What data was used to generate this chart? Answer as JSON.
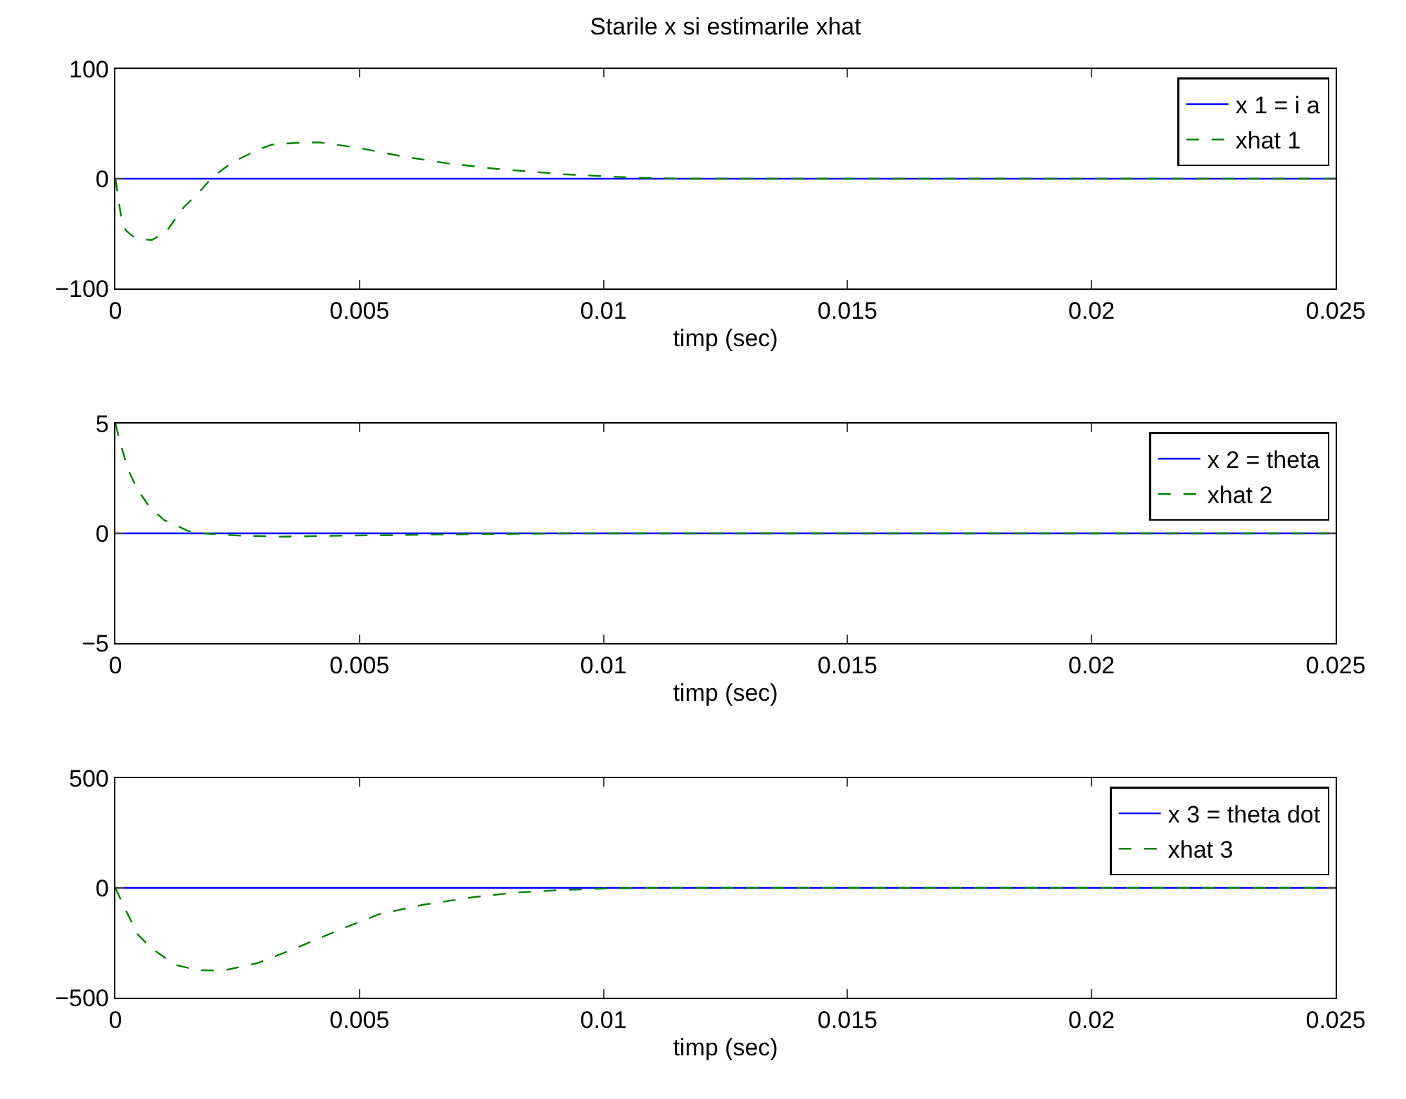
{
  "chart_data": [
    {
      "type": "line",
      "title": "Starile x si estimarile xhat",
      "xlabel": "timp (sec)",
      "xlim": [
        0,
        0.025
      ],
      "xticks": [
        0,
        0.005,
        0.01,
        0.015,
        0.02,
        0.025
      ],
      "ylim": [
        -100,
        100
      ],
      "yticks": [
        -100,
        0,
        100
      ],
      "grid": false,
      "legend": "top right",
      "marker": "none",
      "series": [
        {
          "name": "x 1 = i a",
          "color": "#0000ff",
          "line_style": "solid",
          "x": [
            0,
            0.025
          ],
          "values": [
            0,
            0
          ]
        },
        {
          "name": "xhat 1",
          "color": "#008000",
          "line_style": "dashed",
          "x": [
            0,
            0.000115,
            0.00021,
            0.0004,
            0.00074,
            0.00103,
            0.0014,
            0.0017,
            0.002,
            0.0024,
            0.0029,
            0.0032,
            0.0038,
            0.0042,
            0.005,
            0.0058,
            0.0068,
            0.0078,
            0.0092,
            0.0106,
            0.0116,
            0.025
          ],
          "values": [
            0,
            -34,
            -47,
            -54,
            -56,
            -49,
            -26,
            -13,
            2,
            15,
            26,
            31,
            33,
            33,
            28,
            21,
            14,
            9,
            4,
            1,
            0,
            0
          ]
        }
      ]
    },
    {
      "type": "line",
      "xlabel": "timp (sec)",
      "xlim": [
        0,
        0.025
      ],
      "xticks": [
        0,
        0.005,
        0.01,
        0.015,
        0.02,
        0.025
      ],
      "ylim": [
        -5,
        5
      ],
      "yticks": [
        -5,
        0,
        5
      ],
      "grid": false,
      "legend": "top right",
      "marker": "none",
      "series": [
        {
          "name": "x 2 = theta",
          "color": "#0000ff",
          "line_style": "solid",
          "x": [
            0,
            0.025
          ],
          "values": [
            0,
            0
          ]
        },
        {
          "name": "xhat 2",
          "color": "#008000",
          "line_style": "dashed",
          "x": [
            0,
            0.000115,
            0.00026,
            0.00045,
            0.0007,
            0.001,
            0.0015,
            0.0018,
            0.0025,
            0.0034,
            0.0049,
            0.0068,
            0.0092,
            0.025
          ],
          "values": [
            5,
            4,
            2.9,
            2,
            1.2,
            0.6,
            0.1,
            0,
            -0.1,
            -0.15,
            -0.1,
            -0.05,
            0,
            0
          ]
        }
      ]
    },
    {
      "type": "line",
      "xlabel": "timp (sec)",
      "xlim": [
        0,
        0.025
      ],
      "xticks": [
        0,
        0.005,
        0.01,
        0.015,
        0.02,
        0.025
      ],
      "ylim": [
        -500,
        500
      ],
      "yticks": [
        -500,
        0,
        500
      ],
      "grid": false,
      "legend": "top right",
      "marker": "none",
      "series": [
        {
          "name": "x 3 = theta dot",
          "color": "#0000ff",
          "line_style": "solid",
          "x": [
            0,
            0.025
          ],
          "values": [
            0,
            0
          ]
        },
        {
          "name": "xhat 3",
          "color": "#008000",
          "line_style": "dashed",
          "x": [
            0,
            0.00021,
            0.00045,
            0.00074,
            0.00122,
            0.0017,
            0.0022,
            0.0029,
            0.0037,
            0.0046,
            0.0054,
            0.0063,
            0.0073,
            0.0082,
            0.0092,
            0.0101,
            0.0111,
            0.025
          ],
          "values": [
            0,
            -100,
            -210,
            -275,
            -350,
            -375,
            -377,
            -343,
            -274,
            -190,
            -120,
            -77,
            -43,
            -21,
            -9,
            -2,
            0,
            0
          ]
        }
      ]
    }
  ]
}
